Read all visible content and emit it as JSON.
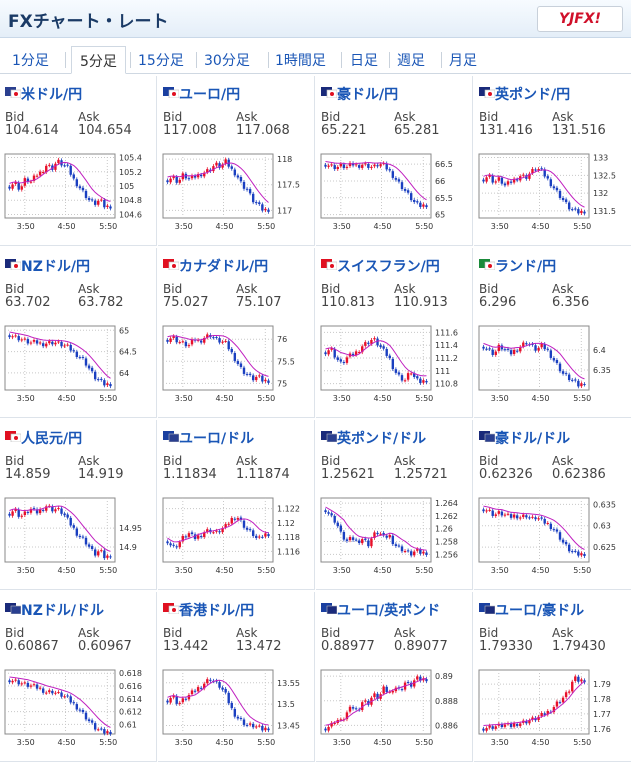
{
  "header": {
    "title": "FXチャート・レート",
    "logo_text": "YJFX!"
  },
  "tabs": [
    "1分足",
    "5分足",
    "15分足",
    "30分足",
    "1時間足",
    "日足",
    "週足",
    "月足"
  ],
  "active_tab": 1,
  "labels": {
    "bid": "Bid",
    "ask": "Ask"
  },
  "x_ticks": [
    "3:50",
    "4:50",
    "5:50"
  ],
  "colors": {
    "up": "#e8102a",
    "down": "#1a3fc0",
    "ma": "#c020c0",
    "grid": "#c8c8c8"
  },
  "pairs": [
    {
      "name": "米ドル/円",
      "flag": "us-jp-flag-icon",
      "bid": "104.614",
      "ask": "104.654",
      "yticks": [
        "105.4",
        "105.2",
        "105",
        "104.8",
        "104.6"
      ],
      "ymin": 104.55,
      "ymax": 105.45,
      "path": [
        105.0,
        105.05,
        104.95,
        105.1,
        105.05,
        105.15,
        105.2,
        105.3,
        105.25,
        105.35,
        105.3,
        105.25,
        105.1,
        105.0,
        104.9,
        104.8,
        104.75,
        104.8,
        104.7,
        104.72
      ]
    },
    {
      "name": "ユーロ/円",
      "flag": "eu-jp-flag-icon",
      "bid": "117.008",
      "ask": "117.068",
      "yticks": [
        "118",
        "117.5",
        "117"
      ],
      "ymin": 116.85,
      "ymax": 118.1,
      "path": [
        117.6,
        117.65,
        117.55,
        117.7,
        117.6,
        117.65,
        117.7,
        117.75,
        117.8,
        117.9,
        117.85,
        117.95,
        117.8,
        117.7,
        117.5,
        117.4,
        117.2,
        117.1,
        117.0,
        117.02
      ]
    },
    {
      "name": "豪ドル/円",
      "flag": "au-jp-flag-icon",
      "bid": "65.221",
      "ask": "65.281",
      "yticks": [
        "66.5",
        "66",
        "65.5",
        "65"
      ],
      "ymin": 64.9,
      "ymax": 66.8,
      "path": [
        66.5,
        66.45,
        66.4,
        66.45,
        66.4,
        66.5,
        66.45,
        66.5,
        66.45,
        66.4,
        66.5,
        66.45,
        66.3,
        66.1,
        65.9,
        65.7,
        65.5,
        65.3,
        65.25,
        65.3
      ]
    },
    {
      "name": "英ポンド/円",
      "flag": "gb-jp-flag-icon",
      "bid": "131.416",
      "ask": "131.516",
      "yticks": [
        "133",
        "132.5",
        "132",
        "131.5"
      ],
      "ymin": 131.3,
      "ymax": 133.1,
      "path": [
        132.4,
        132.5,
        132.3,
        132.4,
        132.2,
        132.3,
        132.4,
        132.5,
        132.45,
        132.6,
        132.7,
        132.6,
        132.4,
        132.2,
        132.0,
        131.8,
        131.6,
        131.5,
        131.45,
        131.5
      ]
    },
    {
      "name": "NZドル/円",
      "flag": "nz-jp-flag-icon",
      "bid": "63.702",
      "ask": "63.782",
      "yticks": [
        "65",
        "64.5",
        "64"
      ],
      "ymin": 63.6,
      "ymax": 65.1,
      "path": [
        64.9,
        64.85,
        64.8,
        64.75,
        64.7,
        64.72,
        64.68,
        64.7,
        64.72,
        64.7,
        64.65,
        64.6,
        64.5,
        64.4,
        64.3,
        64.1,
        63.9,
        63.8,
        63.72,
        63.75
      ]
    },
    {
      "name": "カナダドル/円",
      "flag": "ca-jp-flag-icon",
      "bid": "75.027",
      "ask": "75.107",
      "yticks": [
        "76",
        "75.5",
        "75"
      ],
      "ymin": 74.85,
      "ymax": 76.3,
      "path": [
        76.0,
        76.05,
        75.95,
        75.9,
        75.85,
        76.0,
        75.95,
        76.05,
        76.1,
        76.0,
        75.95,
        75.9,
        75.7,
        75.5,
        75.3,
        75.2,
        75.1,
        75.15,
        75.05,
        75.07
      ]
    },
    {
      "name": "スイスフラン/円",
      "flag": "ch-jp-flag-icon",
      "bid": "110.813",
      "ask": "110.913",
      "yticks": [
        "111.6",
        "111.4",
        "111.2",
        "111",
        "110.8"
      ],
      "ymin": 110.7,
      "ymax": 111.7,
      "path": [
        111.3,
        111.35,
        111.2,
        111.1,
        111.2,
        111.25,
        111.3,
        111.4,
        111.45,
        111.5,
        111.4,
        111.3,
        111.2,
        111.0,
        110.9,
        110.85,
        111.0,
        110.85,
        110.82,
        110.86
      ]
    },
    {
      "name": "ランド/円",
      "flag": "za-jp-flag-icon",
      "bid": "6.296",
      "ask": "6.356",
      "yticks": [
        "6.4",
        "6.35"
      ],
      "ymin": 6.3,
      "ymax": 6.46,
      "path": [
        6.41,
        6.4,
        6.39,
        6.41,
        6.4,
        6.39,
        6.4,
        6.41,
        6.42,
        6.41,
        6.4,
        6.41,
        6.4,
        6.38,
        6.36,
        6.34,
        6.33,
        6.32,
        6.31,
        6.32
      ]
    },
    {
      "name": "人民元/円",
      "flag": "cn-jp-flag-icon",
      "bid": "14.859",
      "ask": "14.919",
      "yticks": [
        "14.95",
        "14.9"
      ],
      "ymin": 14.86,
      "ymax": 15.03,
      "path": [
        14.99,
        15.0,
        14.98,
        14.99,
        15.0,
        14.99,
        15.0,
        15.01,
        15.0,
        15.0,
        14.99,
        14.97,
        14.95,
        14.93,
        14.92,
        14.9,
        14.88,
        14.89,
        14.87,
        14.88
      ]
    },
    {
      "name": "ユーロ/ドル",
      "flag": "eu-us-flag-icon",
      "bid": "1.11834",
      "ask": "1.11874",
      "yticks": [
        "1.122",
        "1.12",
        "1.118",
        "1.116"
      ],
      "ymin": 1.1145,
      "ymax": 1.1235,
      "path": [
        1.1175,
        1.1165,
        1.117,
        1.118,
        1.1185,
        1.1178,
        1.1182,
        1.1188,
        1.119,
        1.1185,
        1.119,
        1.1195,
        1.1205,
        1.121,
        1.12,
        1.119,
        1.1185,
        1.1175,
        1.1183,
        1.1185
      ]
    },
    {
      "name": "英ポンド/ドル",
      "flag": "gb-us-flag-icon",
      "bid": "1.25621",
      "ask": "1.25721",
      "yticks": [
        "1.264",
        "1.262",
        "1.26",
        "1.258",
        "1.256"
      ],
      "ymin": 1.2548,
      "ymax": 1.2648,
      "path": [
        1.263,
        1.262,
        1.261,
        1.259,
        1.258,
        1.2585,
        1.258,
        1.2585,
        1.2575,
        1.259,
        1.2595,
        1.2585,
        1.259,
        1.2575,
        1.257,
        1.2565,
        1.256,
        1.2565,
        1.2562,
        1.2563
      ]
    },
    {
      "name": "豪ドル/ドル",
      "flag": "au-us-flag-icon",
      "bid": "0.62326",
      "ask": "0.62386",
      "yticks": [
        "0.635",
        "0.63",
        "0.625"
      ],
      "ymin": 0.6215,
      "ymax": 0.6365,
      "path": [
        0.634,
        0.6335,
        0.6325,
        0.633,
        0.6325,
        0.632,
        0.6325,
        0.632,
        0.6325,
        0.6315,
        0.632,
        0.631,
        0.6305,
        0.6295,
        0.628,
        0.626,
        0.6245,
        0.6235,
        0.6232,
        0.6235
      ]
    },
    {
      "name": "NZドル/ドル",
      "flag": "nz-us-flag-icon",
      "bid": "0.60867",
      "ask": "0.60967",
      "yticks": [
        "0.618",
        "0.616",
        "0.614",
        "0.612",
        "0.61"
      ],
      "ymin": 0.6085,
      "ymax": 0.6185,
      "path": [
        0.617,
        0.6168,
        0.6165,
        0.6162,
        0.616,
        0.6158,
        0.6155,
        0.615,
        0.6152,
        0.6148,
        0.6145,
        0.614,
        0.6132,
        0.6125,
        0.6115,
        0.6105,
        0.6095,
        0.609,
        0.6087,
        0.6089
      ]
    },
    {
      "name": "香港ドル/円",
      "flag": "hk-jp-flag-icon",
      "bid": "13.442",
      "ask": "13.472",
      "yticks": [
        "13.55",
        "13.5",
        "13.45"
      ],
      "ymin": 13.43,
      "ymax": 13.58,
      "path": [
        13.51,
        13.52,
        13.5,
        13.51,
        13.52,
        13.53,
        13.54,
        13.55,
        13.56,
        13.55,
        13.54,
        13.52,
        13.49,
        13.47,
        13.46,
        13.45,
        13.45,
        13.445,
        13.44,
        13.445
      ]
    },
    {
      "name": "ユーロ/英ポンド",
      "flag": "eu-gb-flag-icon",
      "bid": "0.88977",
      "ask": "0.89077",
      "yticks": [
        "0.89",
        "0.888",
        "0.886"
      ],
      "ymin": 0.8853,
      "ymax": 0.8905,
      "path": [
        0.8858,
        0.886,
        0.8865,
        0.8863,
        0.887,
        0.8875,
        0.8872,
        0.888,
        0.8878,
        0.8885,
        0.8882,
        0.889,
        0.8886,
        0.8892,
        0.8888,
        0.8895,
        0.8892,
        0.8898,
        0.8897,
        0.8898
      ]
    },
    {
      "name": "ユーロ/豪ドル",
      "flag": "eu-au-flag-icon",
      "bid": "1.79330",
      "ask": "1.79430",
      "yticks": [
        "1.79",
        "1.78",
        "1.77",
        "1.76"
      ],
      "ymin": 1.7565,
      "ymax": 1.7995,
      "path": [
        1.7605,
        1.761,
        1.7615,
        1.762,
        1.7625,
        1.7615,
        1.7635,
        1.764,
        1.765,
        1.766,
        1.767,
        1.769,
        1.771,
        1.774,
        1.778,
        1.781,
        1.785,
        1.794,
        1.792,
        1.793
      ]
    }
  ]
}
